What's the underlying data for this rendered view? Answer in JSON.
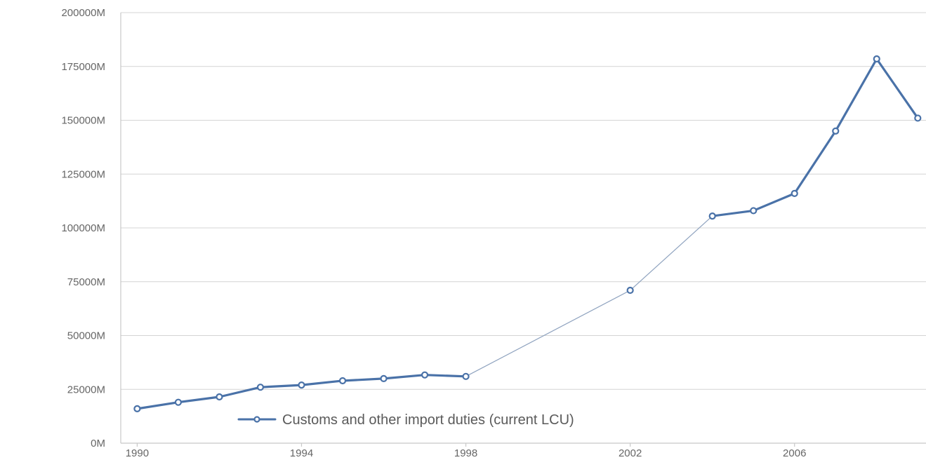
{
  "chart_data": {
    "type": "line",
    "title": "",
    "xlabel": "",
    "ylabel": "",
    "x_tick_labels": [
      "1990",
      "1994",
      "1998",
      "2002",
      "2006"
    ],
    "y_tick_labels": [
      "0M",
      "25000M",
      "50000M",
      "75000M",
      "100000M",
      "125000M",
      "150000M",
      "175000M",
      "200000M"
    ],
    "ylim": [
      0,
      200000
    ],
    "xlim": [
      1989.6,
      2009.2
    ],
    "grid": true,
    "legend_position": "bottom-center",
    "series": [
      {
        "name": "Customs and other import duties (current LCU)",
        "color": "#4a72a8",
        "marker": "circle",
        "unit": "M",
        "points": [
          {
            "x": 1990,
            "y": 16000
          },
          {
            "x": 1991,
            "y": 19000
          },
          {
            "x": 1992,
            "y": 21500
          },
          {
            "x": 1993,
            "y": 26000
          },
          {
            "x": 1994,
            "y": 27000
          },
          {
            "x": 1995,
            "y": 29000
          },
          {
            "x": 1996,
            "y": 30000
          },
          {
            "x": 1997,
            "y": 31700
          },
          {
            "x": 1998,
            "y": 31000
          },
          {
            "x": 2002,
            "y": 71000
          },
          {
            "x": 2004,
            "y": 105500
          },
          {
            "x": 2005,
            "y": 108000
          },
          {
            "x": 2006,
            "y": 116000
          },
          {
            "x": 2007,
            "y": 145000
          },
          {
            "x": 2008,
            "y": 178500
          },
          {
            "x": 2009,
            "y": 151000
          }
        ]
      }
    ]
  }
}
